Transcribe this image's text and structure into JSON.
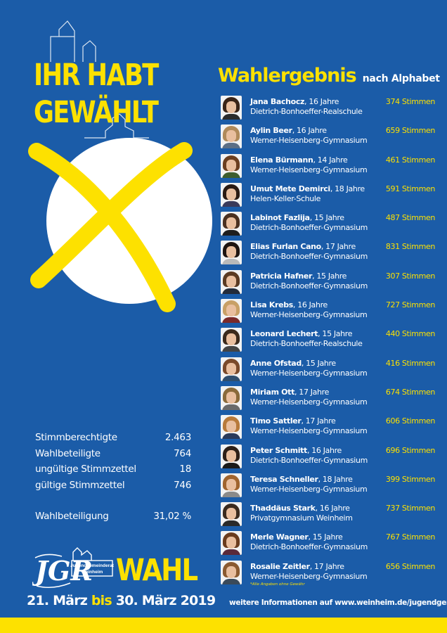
{
  "headline": {
    "line1": "IHR HABT",
    "line2": "GEWÄHLT"
  },
  "stats": [
    {
      "label": "Stimmberechtigte",
      "value": "2.463"
    },
    {
      "label": "Wahlbeteiligte",
      "value": "764"
    },
    {
      "label": "ungültige Stimmzettel",
      "value": "18"
    },
    {
      "label": "gültige Stimmzettel",
      "value": "746"
    }
  ],
  "turnout": {
    "label": "Wahlbeteiligung",
    "value": "31,02 %"
  },
  "logo": {
    "letters": "JGR",
    "line1": "Jugendgemeinderat",
    "line2": "Weinheim"
  },
  "wahl": "WAHL",
  "dates": {
    "start": "21. März",
    "mid": "bis",
    "end": "30. März 2019"
  },
  "results": {
    "title": "Wahlergebnis",
    "subtitle": "nach Alphabet",
    "candidates": [
      {
        "name": "Jana Bachocz",
        "age": ", 16 Jahre",
        "school": "Dietrich-Bonhoeffer-Realschule",
        "votes": "374 Stimmen"
      },
      {
        "name": "Aylin Beer",
        "age": ", 16 Jahre",
        "school": "Werner-Heisenberg-Gymnasium",
        "votes": "659 Stimmen"
      },
      {
        "name": "Elena Bürmann",
        "age": ", 14 Jahre",
        "school": "Werner-Heisenberg-Gymnasium",
        "votes": "461 Stimmen"
      },
      {
        "name": "Umut Mete Demirci",
        "age": ", 18 Jahre",
        "school": "Helen-Keller-Schule",
        "votes": "591 Stimmen"
      },
      {
        "name": "Labinot Fazlija",
        "age": ", 15 Jahre",
        "school": "Dietrich-Bonhoeffer-Gymnasium",
        "votes": "487 Stimmen"
      },
      {
        "name": "Elias Furlan Cano",
        "age": ", 17 Jahre",
        "school": "Dietrich-Bonhoeffer-Gymnasium",
        "votes": "831 Stimmen"
      },
      {
        "name": "Patricia Hafner",
        "age": ", 15 Jahre",
        "school": "Dietrich-Bonhoeffer-Gymnasium",
        "votes": "307 Stimmen"
      },
      {
        "name": "Lisa Krebs",
        "age": ", 16 Jahre",
        "school": "Werner-Heisenberg-Gymnasium",
        "votes": "727 Stimmen"
      },
      {
        "name": "Leonard Lechert",
        "age": ", 15 Jahre",
        "school": "Dietrich-Bonhoeffer-Realschule",
        "votes": "440 Stimmen"
      },
      {
        "name": "Anne Ofstad",
        "age": ", 15 Jahre",
        "school": "Werner-Heisenberg-Gymnasium",
        "votes": "416 Stimmen"
      },
      {
        "name": "Miriam Ott",
        "age": ", 17 Jahre",
        "school": "Werner-Heisenberg-Gymnasium",
        "votes": "674 Stimmen"
      },
      {
        "name": "Timo Sattler",
        "age": ", 17 Jahre",
        "school": "Werner-Heisenberg-Gymnasium",
        "votes": "606 Stimmen"
      },
      {
        "name": "Peter Schmitt",
        "age": ", 16 Jahre",
        "school": "Dietrich-Bonhoeffer-Gymnasium",
        "votes": "696 Stimmen"
      },
      {
        "name": "Teresa Schneller",
        "age": ", 18 Jahre",
        "school": "Werner-Heisenberg-Gymnasium",
        "votes": "399 Stimmen"
      },
      {
        "name": "Thaddäus Stark",
        "age": ", 16 Jahre",
        "school": "Privatgymnasium Weinheim",
        "votes": "737 Stimmen"
      },
      {
        "name": "Merle Wagner",
        "age": ", 15 Jahre",
        "school": "Dietrich-Bonhoeffer-Gymnasium",
        "votes": "767 Stimmen"
      },
      {
        "name": "Rosalie Zeitler",
        "age": ", 17 Jahre",
        "school": "Werner-Heisenberg-Gymnasium",
        "votes": "656 Stimmen"
      }
    ],
    "note": "*Alle Angaben ohne Gewähr"
  },
  "footer": "weitere Informationen auf www.weinheim.de/jugendgemeinderat",
  "colors": {
    "background": "#1b5ca8",
    "accent": "#fde100",
    "text": "#ffffff"
  }
}
